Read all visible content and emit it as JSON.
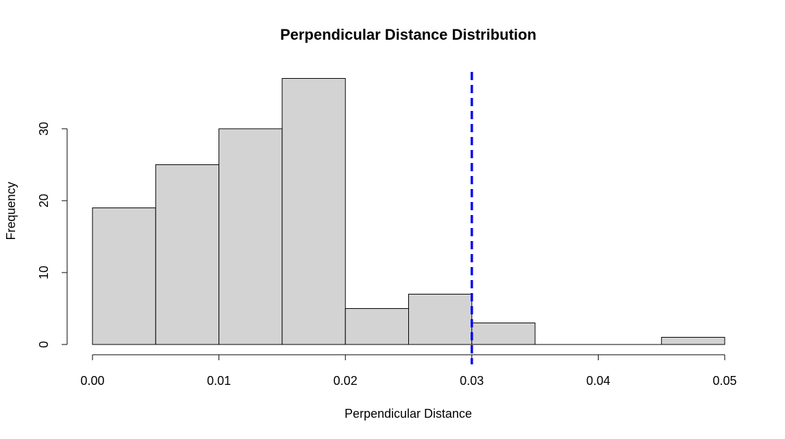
{
  "chart_data": {
    "type": "bar",
    "title": "Perpendicular Distance Distribution",
    "xlabel": "Perpendicular Distance",
    "ylabel": "Frequency",
    "bins": [
      {
        "start": 0.0,
        "end": 0.005,
        "count": 19
      },
      {
        "start": 0.005,
        "end": 0.01,
        "count": 25
      },
      {
        "start": 0.01,
        "end": 0.015,
        "count": 30
      },
      {
        "start": 0.015,
        "end": 0.02,
        "count": 37
      },
      {
        "start": 0.02,
        "end": 0.025,
        "count": 5
      },
      {
        "start": 0.025,
        "end": 0.03,
        "count": 7
      },
      {
        "start": 0.03,
        "end": 0.035,
        "count": 3
      },
      {
        "start": 0.035,
        "end": 0.04,
        "count": 0
      },
      {
        "start": 0.04,
        "end": 0.045,
        "count": 0
      },
      {
        "start": 0.045,
        "end": 0.05,
        "count": 1
      }
    ],
    "xlim": [
      0.0,
      0.05
    ],
    "ylim": [
      0,
      37
    ],
    "x_ticks": [
      "0.00",
      "0.01",
      "0.02",
      "0.03",
      "0.04",
      "0.05"
    ],
    "y_ticks": [
      "0",
      "10",
      "20",
      "30"
    ],
    "reference_line": {
      "x": 0.03,
      "color": "#0000ee",
      "style": "dashed"
    },
    "grid": false,
    "bar_color": "#d3d3d3"
  }
}
